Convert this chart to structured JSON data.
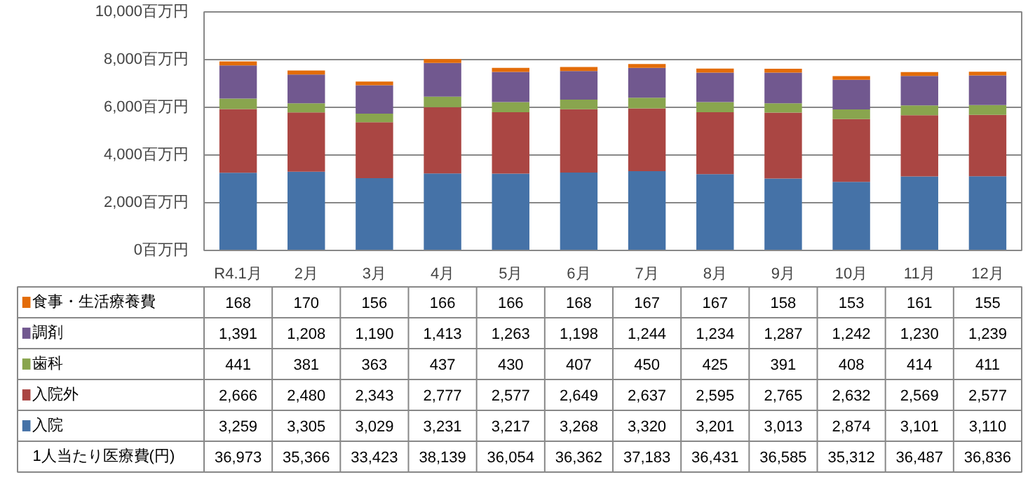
{
  "chart_data": {
    "type": "bar",
    "stacked": true,
    "legend": "bottom",
    "grid": "y",
    "categories": [
      "R4.1月",
      "2月",
      "3月",
      "4月",
      "5月",
      "6月",
      "7月",
      "8月",
      "9月",
      "10月",
      "11月",
      "12月"
    ],
    "ylim": [
      0,
      10000
    ],
    "yticks": [
      {
        "value": 0,
        "label": "0百万円"
      },
      {
        "value": 2000,
        "label": "2,000百万円"
      },
      {
        "value": 4000,
        "label": "4,000百万円"
      },
      {
        "value": 6000,
        "label": "6,000百万円"
      },
      {
        "value": 8000,
        "label": "8,000百万円"
      },
      {
        "value": 10000,
        "label": "10,000百万円"
      }
    ],
    "series": [
      {
        "name": "入院",
        "color": "#4572a7",
        "values": [
          3259,
          3305,
          3029,
          3231,
          3217,
          3268,
          3320,
          3201,
          3013,
          2874,
          3101,
          3110
        ],
        "value_labels": [
          "3,259",
          "3,305",
          "3,029",
          "3,231",
          "3,217",
          "3,268",
          "3,320",
          "3,201",
          "3,013",
          "2,874",
          "3,101",
          "3,110"
        ]
      },
      {
        "name": "入院外",
        "color": "#aa4643",
        "values": [
          2666,
          2480,
          2343,
          2777,
          2577,
          2649,
          2637,
          2595,
          2765,
          2632,
          2569,
          2577
        ],
        "value_labels": [
          "2,666",
          "2,480",
          "2,343",
          "2,777",
          "2,577",
          "2,649",
          "2,637",
          "2,595",
          "2,765",
          "2,632",
          "2,569",
          "2,577"
        ]
      },
      {
        "name": "歯科",
        "color": "#89a54e",
        "values": [
          441,
          381,
          363,
          437,
          430,
          407,
          450,
          425,
          391,
          408,
          414,
          411
        ],
        "value_labels": [
          "441",
          "381",
          "363",
          "437",
          "430",
          "407",
          "450",
          "425",
          "391",
          "408",
          "414",
          "411"
        ]
      },
      {
        "name": "調剤",
        "color": "#71588f",
        "values": [
          1391,
          1208,
          1190,
          1413,
          1263,
          1198,
          1244,
          1234,
          1287,
          1242,
          1230,
          1239
        ],
        "value_labels": [
          "1,391",
          "1,208",
          "1,190",
          "1,413",
          "1,263",
          "1,198",
          "1,244",
          "1,234",
          "1,287",
          "1,242",
          "1,230",
          "1,239"
        ]
      },
      {
        "name": "食事・生活療養費",
        "color": "#e36c09",
        "values": [
          168,
          170,
          156,
          166,
          166,
          168,
          167,
          167,
          158,
          153,
          161,
          155
        ],
        "value_labels": [
          "168",
          "170",
          "156",
          "166",
          "166",
          "168",
          "167",
          "167",
          "158",
          "153",
          "161",
          "155"
        ]
      }
    ],
    "annotations": [
      "1人当たり医療費(円)",
      "36,973",
      "35,366",
      "33,423",
      "38,139",
      "36,054",
      "36,362",
      "37,183",
      "36,431",
      "36,585",
      "35,312",
      "36,487",
      "36,836"
    ]
  }
}
